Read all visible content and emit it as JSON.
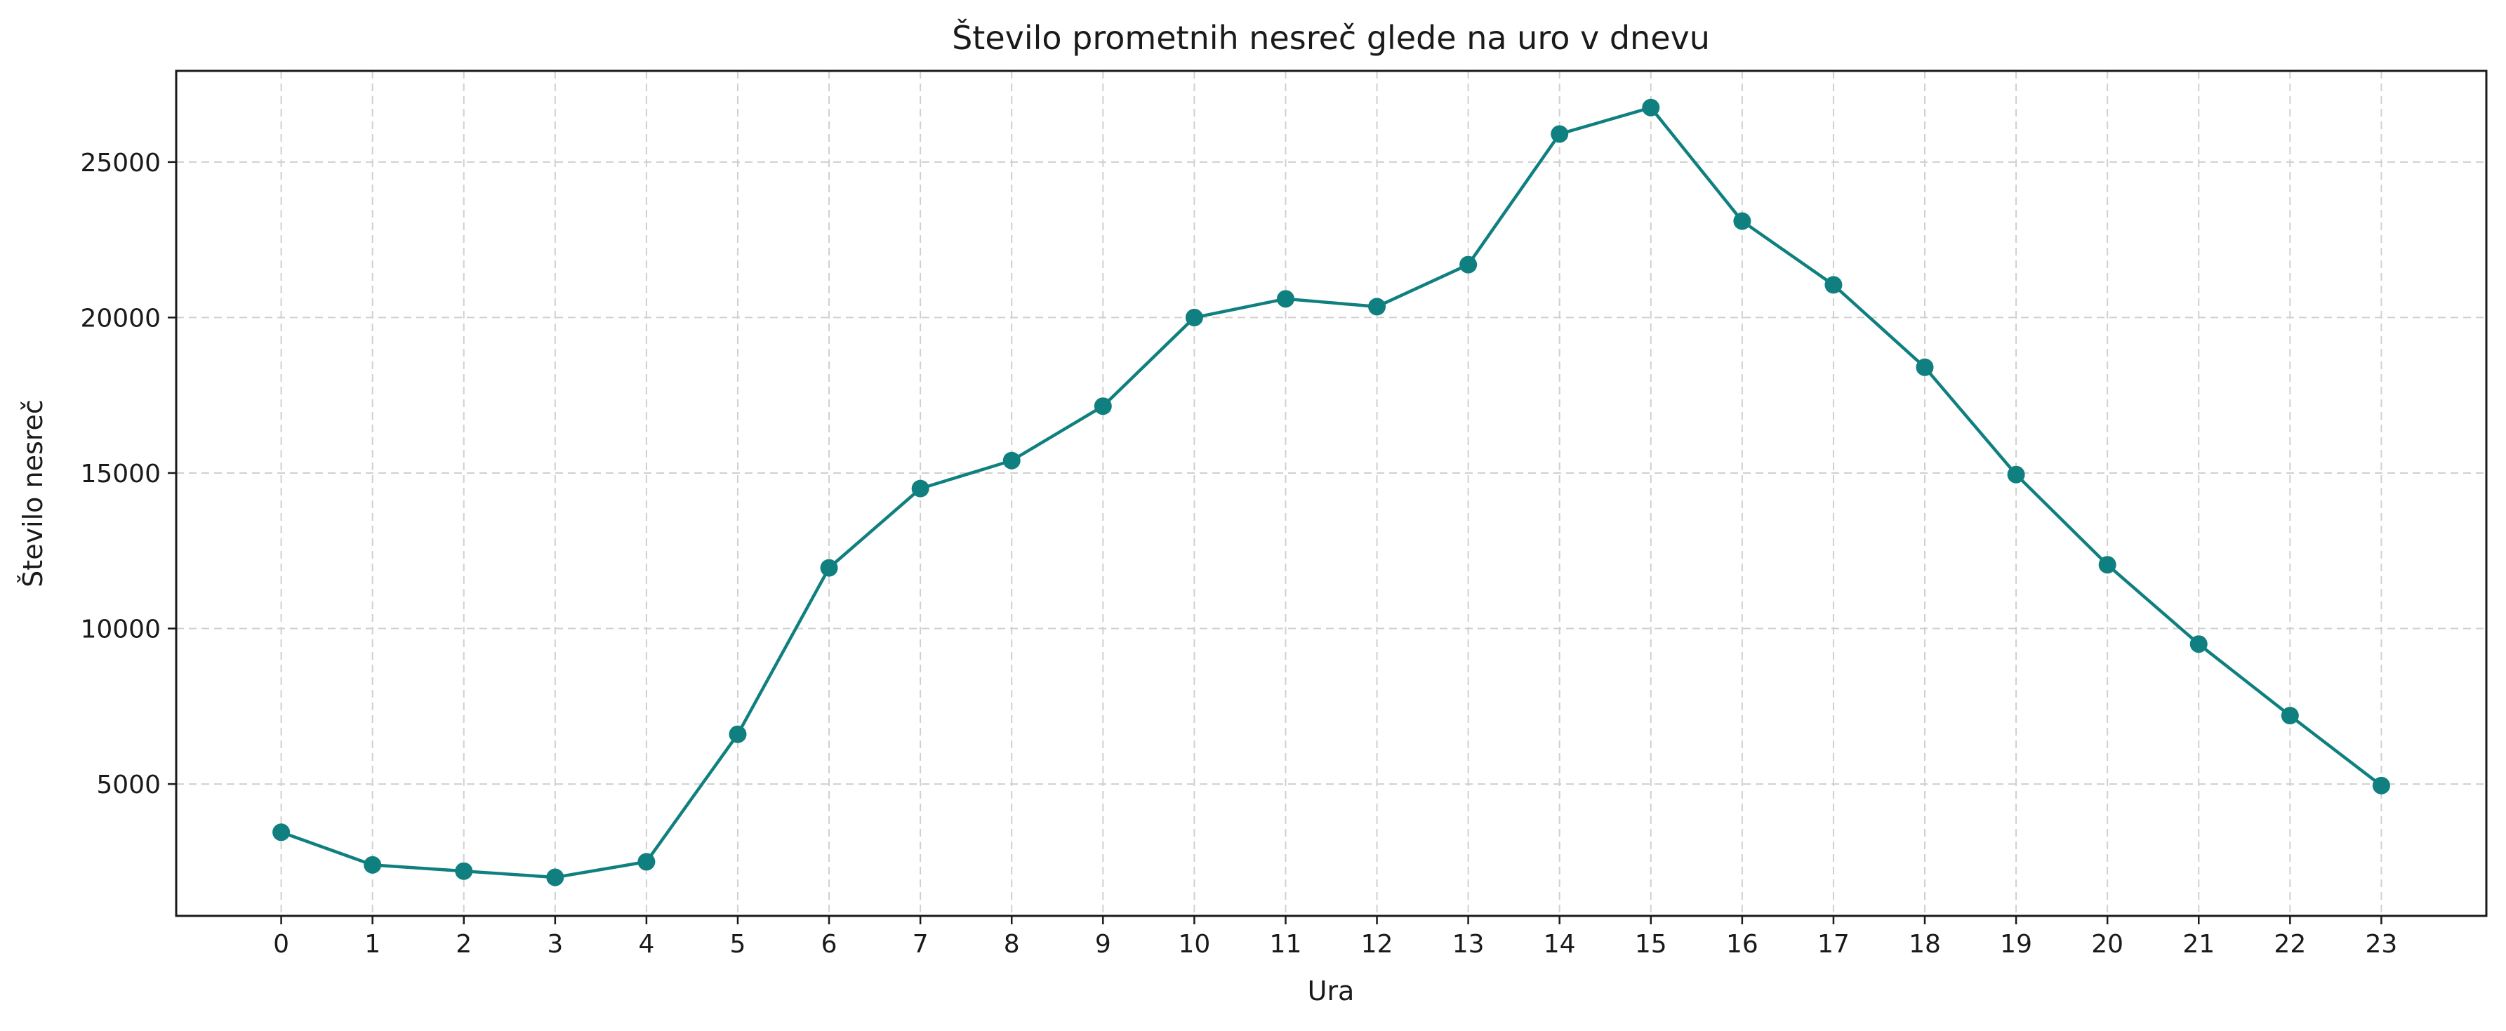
{
  "chart_data": {
    "type": "line",
    "title": "Število prometnih nesreč glede na uro v dnevu",
    "xlabel": "Ura",
    "ylabel": "Število nesreč",
    "x": [
      0,
      1,
      2,
      3,
      4,
      5,
      6,
      7,
      8,
      9,
      10,
      11,
      12,
      13,
      14,
      15,
      16,
      17,
      18,
      19,
      20,
      21,
      22,
      23
    ],
    "series": [
      {
        "values": [
          3450,
          2400,
          2200,
          2000,
          2500,
          6600,
          11950,
          14500,
          15400,
          17150,
          20000,
          20600,
          20350,
          21700,
          25900,
          26750,
          23100,
          21050,
          18400,
          14950,
          12050,
          9500,
          7200,
          4950
        ],
        "color": "#0f7f7f"
      }
    ],
    "xticks": [
      "0",
      "1",
      "2",
      "3",
      "4",
      "5",
      "6",
      "7",
      "8",
      "9",
      "10",
      "11",
      "12",
      "13",
      "14",
      "15",
      "16",
      "17",
      "18",
      "19",
      "20",
      "21",
      "22",
      "23"
    ],
    "yticks": [
      5000,
      10000,
      15000,
      20000,
      25000
    ],
    "ytick_labels": [
      "5000",
      "10000",
      "15000",
      "20000",
      "25000"
    ],
    "xlim": [
      -1.15,
      24.15
    ],
    "ylim": [
      760,
      27930
    ],
    "grid": true,
    "grid_style": "dashed",
    "markers": "circle"
  }
}
